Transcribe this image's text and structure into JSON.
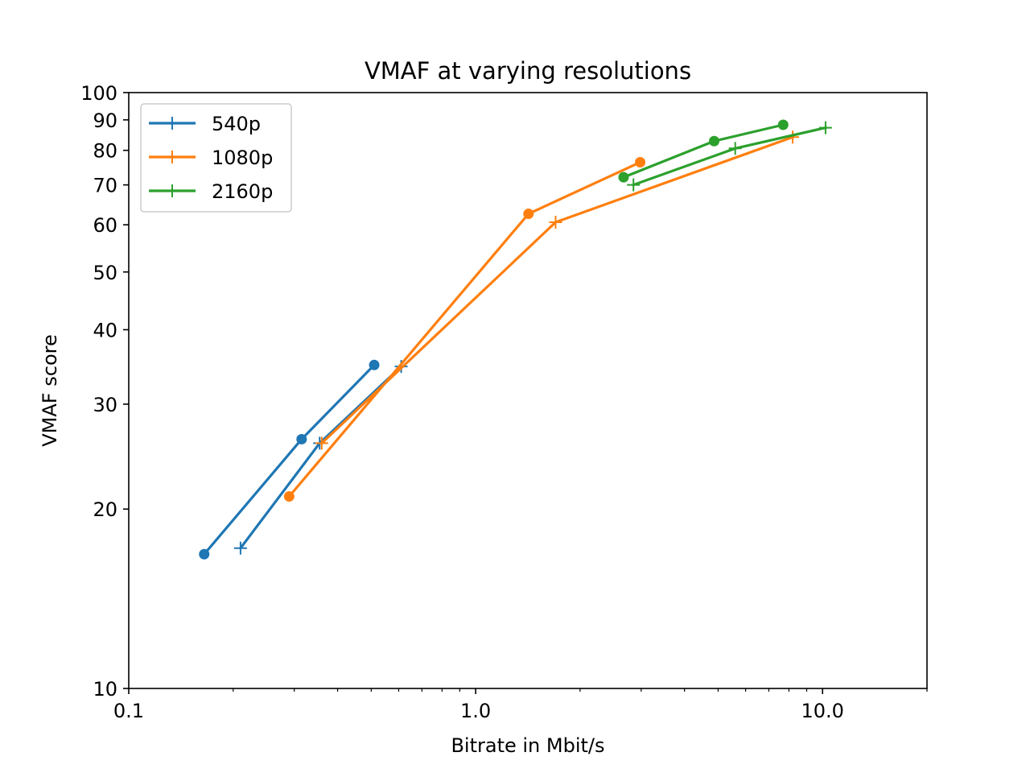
{
  "chart_data": {
    "type": "line",
    "title": "VMAF at varying resolutions",
    "xlabel": "Bitrate in Mbit/s",
    "ylabel": "VMAF score",
    "xscale": "log",
    "yscale": "log",
    "xlim": [
      0.1,
      20
    ],
    "ylim": [
      10,
      100
    ],
    "x_ticks": [
      "0.1",
      "1.0",
      "10.0"
    ],
    "y_ticks": [
      "10",
      "20",
      "30",
      "40",
      "50",
      "60",
      "70",
      "80",
      "90",
      "100"
    ],
    "grid": false,
    "legend_position": "top-left",
    "series": [
      {
        "name": "540p",
        "color": "#1f77b4",
        "lines": [
          {
            "marker": "circle",
            "x": [
              0.165,
              0.315,
              0.51
            ],
            "y": [
              16.8,
              26.2,
              34.9
            ]
          },
          {
            "marker": "plus",
            "x": [
              0.21,
              0.355,
              0.61
            ],
            "y": [
              17.2,
              25.8,
              34.7
            ]
          }
        ]
      },
      {
        "name": "1080p",
        "color": "#ff7f0e",
        "lines": [
          {
            "marker": "circle",
            "x": [
              0.29,
              1.42,
              2.98
            ],
            "y": [
              21.0,
              62.6,
              76.4
            ]
          },
          {
            "marker": "plus",
            "x": [
              0.36,
              1.7,
              8.2
            ],
            "y": [
              25.8,
              60.6,
              84.2
            ]
          }
        ]
      },
      {
        "name": "2160p",
        "color": "#2ca02c",
        "lines": [
          {
            "marker": "circle",
            "x": [
              2.67,
              4.87,
              7.7
            ],
            "y": [
              72.1,
              82.9,
              88.3
            ]
          },
          {
            "marker": "plus",
            "x": [
              2.85,
              5.6,
              10.2
            ],
            "y": [
              70.0,
              80.6,
              87.3
            ]
          }
        ]
      }
    ]
  }
}
